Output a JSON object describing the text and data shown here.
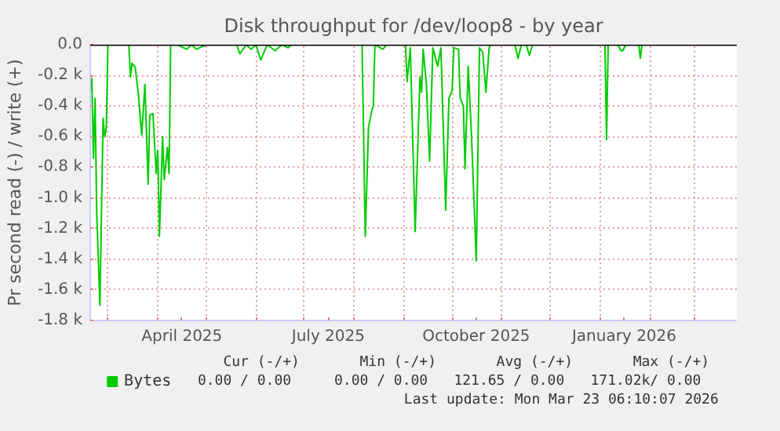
{
  "chart_data": {
    "type": "line",
    "title": "Disk throughput for /dev/loop8 - by year",
    "ylabel": "Pr second read (-) / write (+)",
    "x": [
      "2025-02-18",
      "2025-02-19",
      "2025-02-20",
      "2025-02-21",
      "2025-02-22",
      "2025-02-24",
      "2025-02-26",
      "2025-02-27",
      "2025-02-28",
      "2025-03-01",
      "2025-03-14",
      "2025-03-15",
      "2025-03-16",
      "2025-03-18",
      "2025-03-20",
      "2025-03-22",
      "2025-03-24",
      "2025-03-26",
      "2025-03-27",
      "2025-03-29",
      "2025-03-31",
      "2025-04-01",
      "2025-04-02",
      "2025-04-04",
      "2025-04-05",
      "2025-04-07",
      "2025-04-08",
      "2025-04-09",
      "2025-04-13",
      "2025-04-19",
      "2025-04-22",
      "2025-04-25",
      "2025-04-29",
      "2025-05-02",
      "2025-05-20",
      "2025-05-22",
      "2025-05-26",
      "2025-05-29",
      "2025-06-01",
      "2025-06-04",
      "2025-06-08",
      "2025-06-13",
      "2025-06-17",
      "2025-06-21",
      "2025-06-23",
      "2025-08-06",
      "2025-08-08",
      "2025-08-10",
      "2025-08-12",
      "2025-08-13",
      "2025-08-14",
      "2025-08-19",
      "2025-08-21",
      "2025-09-02",
      "2025-09-03",
      "2025-09-05",
      "2025-09-08",
      "2025-09-11",
      "2025-09-12",
      "2025-09-13",
      "2025-09-15",
      "2025-09-17",
      "2025-09-19",
      "2025-09-22",
      "2025-09-24",
      "2025-09-27",
      "2025-09-29",
      "2025-10-01",
      "2025-10-02",
      "2025-10-05",
      "2025-10-06",
      "2025-10-08",
      "2025-10-09",
      "2025-10-11",
      "2025-10-13",
      "2025-10-16",
      "2025-10-18",
      "2025-10-20",
      "2025-10-22",
      "2025-10-24",
      "2025-10-25",
      "2025-11-09",
      "2025-11-11",
      "2025-11-13",
      "2025-11-16",
      "2025-11-18",
      "2025-11-20",
      "2026-01-04",
      "2026-01-05",
      "2026-01-06",
      "2026-01-12",
      "2026-01-14",
      "2026-01-15",
      "2026-01-17",
      "2026-01-25",
      "2026-01-26",
      "2026-01-27"
    ],
    "series": [
      {
        "name": "Bytes",
        "color": "#00cc00",
        "values": [
          -310,
          -220,
          -740,
          -350,
          -1080,
          -1700,
          -480,
          -600,
          -540,
          0,
          0,
          -210,
          -120,
          -150,
          -330,
          -590,
          -260,
          -910,
          -460,
          -450,
          -840,
          -690,
          -1250,
          -600,
          -880,
          -670,
          -840,
          0,
          0,
          -30,
          0,
          -30,
          -10,
          0,
          0,
          -60,
          0,
          -30,
          0,
          -100,
          0,
          -40,
          0,
          -20,
          0,
          0,
          -1250,
          -540,
          -430,
          -400,
          0,
          -30,
          0,
          0,
          -240,
          -20,
          -1220,
          -210,
          -310,
          -30,
          -260,
          -760,
          -20,
          -140,
          -20,
          -1080,
          -350,
          -300,
          -20,
          -30,
          -350,
          -400,
          -810,
          -140,
          -590,
          -1410,
          -20,
          -50,
          -310,
          -20,
          0,
          0,
          -90,
          0,
          0,
          -70,
          0,
          0,
          -620,
          0,
          0,
          -40,
          -40,
          0,
          0,
          -90,
          0
        ]
      }
    ],
    "xlim": [
      "2025-02-18",
      "2026-03-27"
    ],
    "xticks": [
      {
        "value": "2025-03-01",
        "label": null
      },
      {
        "value": "2025-04-01",
        "label": null
      },
      {
        "value": "2025-05-01",
        "label": null
      },
      {
        "value": "2025-06-01",
        "label": null
      },
      {
        "value": "2025-07-01",
        "label": null
      },
      {
        "value": "2025-08-01",
        "label": null
      },
      {
        "value": "2025-09-01",
        "label": null
      },
      {
        "value": "2025-10-01",
        "label": null
      },
      {
        "value": "2025-11-01",
        "label": null
      },
      {
        "value": "2025-12-01",
        "label": null
      },
      {
        "value": "2026-01-01",
        "label": null
      },
      {
        "value": "2026-02-01",
        "label": null
      },
      {
        "value": "2026-03-01",
        "label": null
      },
      {
        "value": "2025-04-16",
        "label": "April 2025"
      },
      {
        "value": "2025-07-16",
        "label": "July 2025"
      },
      {
        "value": "2025-10-16",
        "label": "October 2025"
      },
      {
        "value": "2026-01-16",
        "label": "January 2026"
      }
    ],
    "ylim": [
      -1800,
      0
    ],
    "yticks": [
      {
        "value": 0,
        "label": "0.0"
      },
      {
        "value": -200,
        "label": "-0.2 k"
      },
      {
        "value": -400,
        "label": "-0.4 k"
      },
      {
        "value": -600,
        "label": "-0.6 k"
      },
      {
        "value": -800,
        "label": "-0.8 k"
      },
      {
        "value": -1000,
        "label": "-1.0 k"
      },
      {
        "value": -1200,
        "label": "-1.2 k"
      },
      {
        "value": -1400,
        "label": "-1.4 k"
      },
      {
        "value": -1600,
        "label": "-1.6 k"
      },
      {
        "value": -1800,
        "label": "-1.8 k"
      }
    ],
    "ref_lines": [
      {
        "axis": "y",
        "value": 0,
        "color": "#000000"
      }
    ],
    "grid": true,
    "legend": "bottom",
    "annotations": [
      "Cur (-/+)",
      "Min (-/+)",
      "Avg (-/+)",
      "Max (-/+)",
      "0.00 /  0.00",
      "0.00 /  0.00",
      "121.65 /  0.00",
      "171.02k/  0.00",
      "Last update: Mon Mar 23 06:10:07 2026"
    ]
  }
}
